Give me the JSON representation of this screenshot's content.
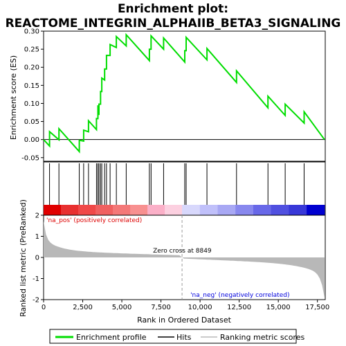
{
  "chart_data": {
    "type": "line",
    "title_line1": "Enrichment plot:",
    "title_line2": "REACTOME_INTEGRIN_ALPHAIIB_BETA3_SIGNALING",
    "top_panel": {
      "ylabel": "Enrichment score (ES)",
      "ylim": [
        -0.06,
        0.3
      ],
      "yticks": [
        "-0.05",
        "0.00",
        "0.05",
        "0.10",
        "0.15",
        "0.20",
        "0.25",
        "0.30"
      ],
      "ytick_values": [
        -0.05,
        0.0,
        0.05,
        0.1,
        0.15,
        0.2,
        0.25,
        0.3
      ],
      "series_color": "#00dd00",
      "hits": [
        380,
        980,
        2280,
        2560,
        2870,
        3380,
        3470,
        3540,
        3640,
        3720,
        3900,
        4020,
        4250,
        4650,
        5280,
        6760,
        6870,
        7670,
        9020,
        9110,
        10440,
        12330,
        14340,
        15440,
        16650
      ],
      "es_peaks": [
        0.022,
        0.03,
        -0.002,
        0.026,
        0.052,
        0.058,
        0.095,
        0.098,
        0.133,
        0.17,
        0.195,
        0.233,
        0.263,
        0.285,
        0.29,
        0.25,
        0.287,
        0.281,
        0.246,
        0.283,
        0.252,
        0.19,
        0.12,
        0.098,
        0.077
      ],
      "es_start": 0.0,
      "es_end": 0.0
    },
    "bottom_panel": {
      "ylabel": "Ranked list metric (PreRanked)",
      "ylim": [
        -2,
        2
      ],
      "yticks": [
        "2",
        "1",
        "0",
        "-1",
        "-2"
      ],
      "ytick_values": [
        2,
        1,
        0,
        -1,
        -2
      ],
      "metric_color": "#b8b8b8",
      "zero_cross_label": "Zero cross at 8849",
      "zero_cross": 8849,
      "pos_label": "'na_pos' (positively correlated)",
      "neg_label": "'na_neg' (negatively correlated)",
      "pos_color": "#dd0000",
      "neg_color": "#0000dd"
    },
    "x": {
      "xlabel": "Rank in Ordered Dataset",
      "xlim": [
        0,
        18000
      ],
      "xticks": [
        "0",
        "2,500",
        "5,000",
        "7,500",
        "10,000",
        "12,500",
        "15,000",
        "17,500"
      ],
      "xtick_values": [
        0,
        2500,
        5000,
        7500,
        10000,
        12500,
        15000,
        17500
      ],
      "n_genes": 17950
    },
    "legend": {
      "items": [
        "Enrichment profile",
        "Hits",
        "Ranking metric scores"
      ],
      "colors": [
        "#00dd00",
        "#000000",
        "#b8b8b8"
      ],
      "placement": "bottom"
    }
  }
}
